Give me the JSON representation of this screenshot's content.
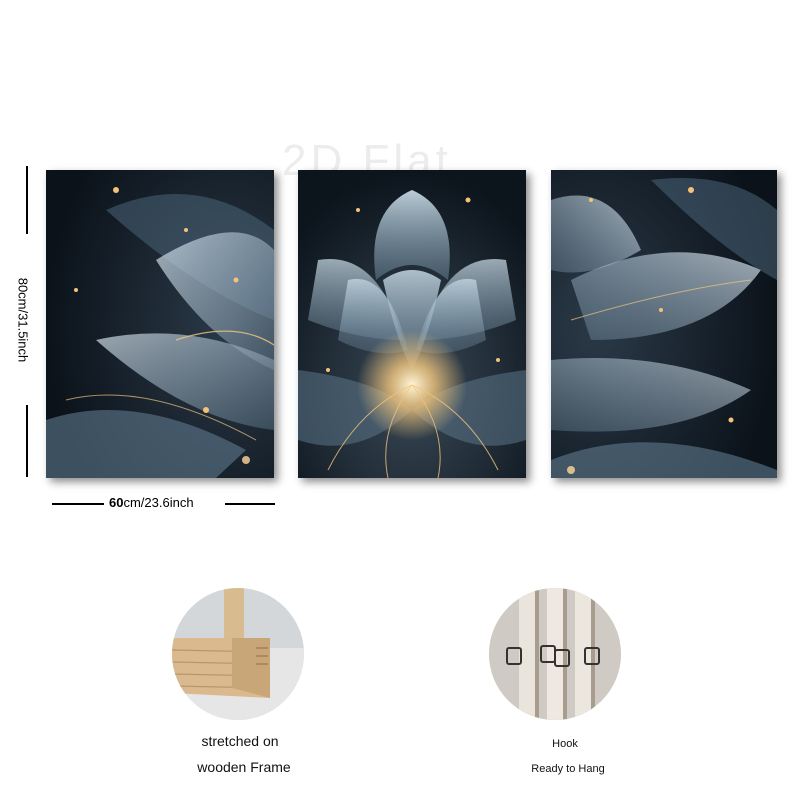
{
  "watermark": "2D Flat",
  "dimensions": {
    "height_label": "80cm/31.5inch",
    "width_label_prefix": "60",
    "width_label_suffix": "cm/23.6inch"
  },
  "features": [
    {
      "icon": "wooden-frame-icon",
      "line1": "stretched on",
      "line2": "wooden Frame"
    },
    {
      "icon": "hook-icon",
      "line1": "Hook",
      "line2": "Ready to Hang"
    }
  ],
  "colors": {
    "background": "#ffffff",
    "panel_dark": "#0d1620",
    "petal": "#bcd4e6",
    "glow": "#f4c27a",
    "wood": "#d9b98d"
  }
}
